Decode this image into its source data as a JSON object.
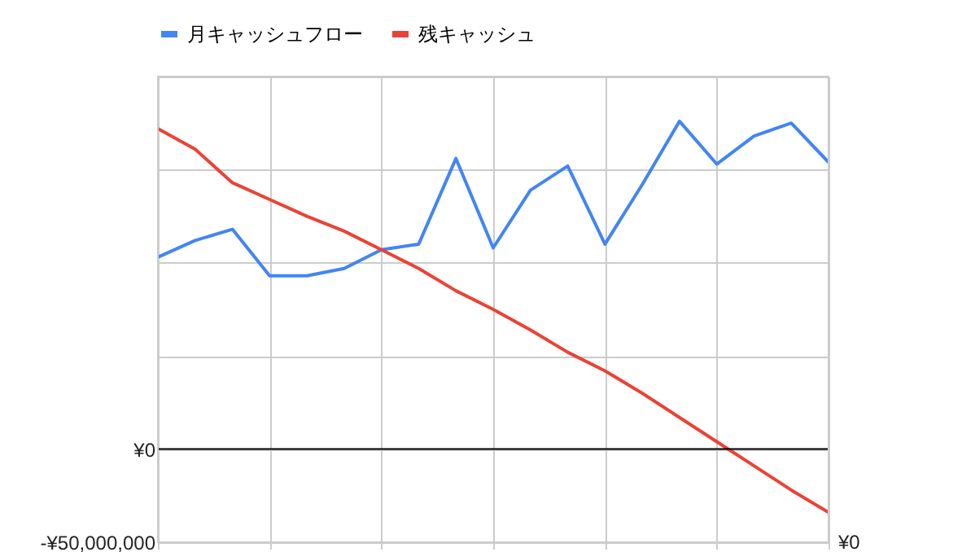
{
  "chart_data": {
    "type": "line",
    "categories": [
      null,
      null,
      null,
      null,
      null,
      null,
      null,
      null,
      null,
      null,
      null,
      null,
      null,
      null,
      null,
      null,
      null,
      null,
      null
    ],
    "series": [
      {
        "name": "月キャッシュフロー",
        "color": "#4285f4",
        "values": [
          103000000,
          112000000,
          118000000,
          93000000,
          93000000,
          97000000,
          107000000,
          110000000,
          156000000,
          108000000,
          139000000,
          152000000,
          110000000,
          142000000,
          176000000,
          153000000,
          168000000,
          175000000,
          154000000
        ]
      },
      {
        "name": "残キャッシュ",
        "color": "#ea4335",
        "values": [
          172000000,
          161000000,
          143000000,
          134000000,
          125000000,
          117000000,
          107000000,
          97000000,
          85000000,
          75000000,
          64000000,
          52000000,
          42000000,
          30000000,
          17000000,
          4000000,
          -9000000,
          -22000000,
          -34000000
        ]
      }
    ],
    "ylim": [
      -50000000,
      200000000
    ],
    "yticks": [
      {
        "value": -50000000,
        "label": "-¥50,000,000"
      },
      {
        "value": 0,
        "label": "¥0"
      },
      {
        "value": 50000000,
        "label": null
      },
      {
        "value": 100000000,
        "label": null
      },
      {
        "value": 150000000,
        "label": null
      },
      {
        "value": 200000000,
        "label": null
      }
    ],
    "ref_lines": [
      {
        "axis": "y",
        "value": 0,
        "color": "#000000"
      }
    ],
    "annotations": [
      "¥0"
    ],
    "grid": true,
    "legend": "top",
    "marker": "none",
    "line_style": "solid",
    "tick_labels": "y"
  }
}
